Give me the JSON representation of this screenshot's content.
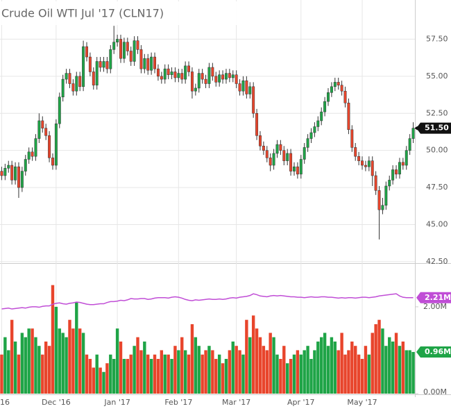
{
  "chart_data": {
    "type": "candlestick",
    "title": "Crude Oil WTI Jul '17 (CLN17)",
    "up_color": "#1fa447",
    "down_color": "#e8452c",
    "ma_color": "#c04dd6",
    "grid": true,
    "xlim": [
      -0.5,
      121.5
    ],
    "xticks": [
      {
        "value": 0,
        "label": "16"
      },
      {
        "value": 16,
        "label": "Dec '16"
      },
      {
        "value": 34,
        "label": "Jan '17"
      },
      {
        "value": 52,
        "label": "Feb '17"
      },
      {
        "value": 69,
        "label": "Mar '17"
      },
      {
        "value": 88,
        "label": "Apr '17"
      },
      {
        "value": 106,
        "label": "May '17"
      }
    ],
    "ylim": [
      42.45,
      60.0
    ],
    "yticks": [
      {
        "value": 42.5,
        "label": "42.50"
      },
      {
        "value": 45,
        "label": "45.00"
      },
      {
        "value": 47.5,
        "label": "47.50"
      },
      {
        "value": 50,
        "label": "50.00"
      },
      {
        "value": 52.5,
        "label": "52.50"
      },
      {
        "value": 55,
        "label": "55.00"
      },
      {
        "value": 57.5,
        "label": "57.50"
      }
    ],
    "volume_ylim": [
      0,
      2.99
    ],
    "volume_yticks": [
      {
        "value": 0,
        "label": "0.00M"
      },
      {
        "value": 2,
        "label": "2.00M"
      }
    ],
    "last_price": {
      "value": 51.5,
      "label": "51.50"
    },
    "last_volume": {
      "value": 0.96,
      "label": "0.96M"
    },
    "last_ma": {
      "value": 2.21,
      "label": "2.21M"
    },
    "open": [
      48.6,
      48.3,
      48.8,
      49.0,
      48.0,
      48.9,
      47.5,
      48.6,
      49.4,
      49.9,
      49.6,
      50.8,
      52.0,
      51.5,
      51.0,
      49.5,
      49.0,
      51.8,
      53.6,
      54.8,
      55.2,
      54.5,
      54.0,
      55.0,
      54.3,
      57.0,
      56.3,
      55.3,
      54.4,
      56.0,
      55.6,
      56.0,
      55.5,
      56.8,
      57.3,
      57.5,
      56.2,
      57.3,
      56.7,
      56.0,
      57.4,
      56.8,
      55.5,
      56.2,
      55.4,
      56.3,
      55.5,
      55.0,
      54.8,
      55.5,
      55.1,
      55.3,
      54.9,
      55.2,
      54.8,
      55.7,
      55.3,
      54.0,
      54.2,
      55.2,
      54.8,
      54.5,
      55.6,
      55.0,
      54.6,
      55.1,
      54.8,
      55.2,
      54.9,
      55.1,
      54.5,
      54.0,
      54.7,
      53.8,
      54.3,
      52.5,
      51.0,
      50.3,
      50.0,
      49.5,
      49.0,
      49.8,
      50.4,
      50.0,
      49.3,
      49.8,
      48.6,
      48.9,
      48.4,
      49.4,
      50.2,
      50.8,
      51.2,
      51.6,
      52.0,
      52.6,
      53.3,
      53.9,
      54.3,
      54.6,
      54.4,
      54.0,
      53.2,
      51.4,
      50.2,
      49.6,
      49.3,
      49.0,
      48.9,
      49.3,
      48.3,
      47.3,
      46.0,
      46.3,
      47.6,
      48.0,
      48.7,
      48.4,
      49.2,
      49.0,
      50.0,
      50.8
    ],
    "high": [
      48.9,
      49.1,
      49.3,
      49.3,
      49.2,
      49.2,
      48.9,
      49.7,
      50.2,
      50.2,
      51.1,
      52.5,
      52.3,
      51.8,
      51.3,
      49.8,
      52.1,
      53.9,
      55.1,
      55.5,
      55.5,
      54.8,
      55.3,
      55.3,
      57.4,
      57.3,
      56.6,
      55.6,
      56.3,
      56.3,
      56.3,
      56.3,
      57.1,
      58.4,
      57.8,
      57.8,
      57.6,
      57.6,
      57.0,
      57.7,
      57.7,
      57.1,
      56.5,
      56.5,
      56.6,
      56.6,
      55.8,
      55.3,
      55.8,
      55.8,
      55.6,
      55.6,
      55.5,
      55.5,
      56.0,
      56.0,
      55.6,
      54.5,
      55.5,
      55.5,
      55.1,
      55.9,
      55.9,
      55.3,
      55.4,
      55.4,
      55.5,
      55.5,
      55.4,
      55.4,
      54.8,
      55.0,
      55.0,
      54.6,
      54.6,
      52.8,
      51.3,
      50.6,
      50.3,
      49.8,
      50.1,
      50.7,
      50.7,
      50.3,
      50.1,
      50.1,
      49.2,
      49.2,
      49.7,
      50.5,
      51.1,
      51.5,
      51.9,
      52.3,
      52.9,
      53.6,
      54.2,
      54.6,
      54.9,
      54.9,
      54.7,
      54.3,
      53.5,
      51.7,
      50.5,
      49.9,
      49.6,
      49.3,
      49.6,
      49.6,
      48.6,
      47.6,
      46.8,
      47.9,
      48.3,
      49.0,
      49.0,
      49.5,
      49.5,
      50.3,
      51.1,
      51.9
    ],
    "low": [
      48.0,
      48.0,
      48.5,
      47.7,
      47.7,
      46.8,
      47.2,
      48.3,
      49.1,
      49.3,
      49.3,
      50.5,
      51.2,
      50.7,
      49.2,
      48.7,
      48.7,
      51.5,
      53.3,
      54.5,
      54.2,
      53.7,
      53.7,
      54.0,
      54.0,
      56.0,
      55.0,
      54.1,
      54.1,
      55.3,
      55.3,
      55.2,
      55.2,
      56.5,
      57.0,
      55.9,
      55.9,
      56.4,
      55.7,
      55.7,
      56.5,
      55.2,
      55.2,
      55.1,
      55.1,
      55.2,
      54.7,
      54.5,
      54.5,
      54.8,
      54.8,
      54.6,
      54.6,
      54.5,
      54.5,
      55.0,
      53.5,
      53.7,
      53.9,
      54.5,
      54.2,
      54.2,
      54.7,
      54.3,
      54.3,
      54.5,
      54.5,
      54.6,
      54.6,
      54.2,
      53.7,
      53.7,
      53.5,
      53.5,
      52.2,
      50.7,
      50.0,
      49.7,
      49.2,
      48.6,
      48.7,
      49.5,
      49.7,
      49.0,
      49.0,
      48.3,
      48.3,
      48.1,
      48.1,
      49.1,
      49.9,
      50.5,
      50.9,
      51.3,
      51.7,
      52.3,
      53.0,
      53.6,
      54.0,
      54.1,
      53.7,
      52.9,
      51.1,
      49.9,
      49.3,
      49.0,
      48.7,
      48.6,
      48.6,
      47.6,
      47.0,
      44.0,
      45.7,
      46.0,
      47.3,
      47.7,
      48.1,
      48.1,
      48.7,
      48.7,
      49.7,
      50.5
    ],
    "close": [
      48.3,
      48.8,
      49.0,
      48.0,
      48.9,
      47.5,
      48.6,
      49.4,
      49.9,
      49.6,
      50.8,
      52.0,
      51.5,
      51.0,
      49.5,
      49.0,
      51.8,
      53.6,
      54.8,
      55.2,
      54.5,
      54.0,
      55.0,
      54.3,
      57.0,
      56.3,
      55.3,
      54.4,
      56.0,
      55.6,
      56.0,
      55.5,
      56.8,
      57.3,
      57.5,
      56.2,
      57.3,
      56.7,
      56.0,
      57.4,
      56.8,
      55.5,
      56.2,
      55.4,
      56.3,
      55.5,
      55.0,
      54.8,
      55.5,
      55.1,
      55.3,
      54.9,
      55.2,
      54.8,
      55.7,
      55.3,
      54.0,
      54.2,
      55.2,
      54.8,
      54.5,
      55.6,
      55.0,
      54.6,
      55.1,
      54.8,
      55.2,
      54.9,
      55.1,
      54.5,
      54.0,
      54.7,
      53.8,
      54.3,
      52.5,
      51.0,
      50.3,
      50.0,
      49.5,
      49.0,
      49.8,
      50.4,
      50.0,
      49.3,
      49.8,
      48.6,
      48.9,
      48.4,
      49.4,
      50.2,
      50.8,
      51.2,
      51.6,
      52.0,
      52.6,
      53.3,
      53.9,
      54.3,
      54.6,
      54.4,
      54.0,
      53.2,
      51.4,
      50.2,
      49.6,
      49.3,
      49.0,
      48.9,
      49.3,
      48.3,
      47.3,
      46.0,
      46.3,
      47.6,
      48.0,
      48.7,
      48.4,
      49.2,
      49.0,
      50.0,
      50.8,
      51.5
    ],
    "volume": [
      0.9,
      1.3,
      1.0,
      1.7,
      1.2,
      0.9,
      1.4,
      1.3,
      1.5,
      1.5,
      1.3,
      1.1,
      0.9,
      1.2,
      1.1,
      2.5,
      2.0,
      1.5,
      1.4,
      1.3,
      1.7,
      1.5,
      2.1,
      1.5,
      1.4,
      0.9,
      0.8,
      0.6,
      0.9,
      0.6,
      0.5,
      0.7,
      0.9,
      0.8,
      1.5,
      1.2,
      0.8,
      0.8,
      0.9,
      1.1,
      1.3,
      1.0,
      1.2,
      0.9,
      0.8,
      0.9,
      0.8,
      1.0,
      0.9,
      0.9,
      0.8,
      1.1,
      1.0,
      1.3,
      1.0,
      0.9,
      1.6,
      1.3,
      1.1,
      0.9,
      1.0,
      1.1,
      1.0,
      0.8,
      0.9,
      0.7,
      0.8,
      1.0,
      1.2,
      1.1,
      1.0,
      0.9,
      1.7,
      1.3,
      1.8,
      1.5,
      1.3,
      1.1,
      1.0,
      1.4,
      1.3,
      0.9,
      0.8,
      1.1,
      0.7,
      0.8,
      0.9,
      1.0,
      0.9,
      1.0,
      1.1,
      0.8,
      1.0,
      1.2,
      1.3,
      1.4,
      1.1,
      1.3,
      1.2,
      1.0,
      1.4,
      0.9,
      1.0,
      1.2,
      1.1,
      0.9,
      0.8,
      1.1,
      0.9,
      1.4,
      1.6,
      1.7,
      1.5,
      1.1,
      1.3,
      1.2,
      1.4,
      1.1,
      1.2,
      1.0,
      1.0,
      0.96
    ],
    "volume_ma": [
      1.95,
      1.96,
      1.97,
      1.95,
      1.96,
      1.97,
      1.98,
      1.97,
      1.99,
      2.0,
      2.0,
      1.99,
      2.01,
      2.02,
      2.02,
      2.06,
      2.08,
      2.09,
      2.07,
      2.06,
      2.08,
      2.09,
      2.11,
      2.1,
      2.08,
      2.06,
      2.05,
      2.05,
      2.06,
      2.07,
      2.07,
      2.1,
      2.12,
      2.12,
      2.13,
      2.15,
      2.14,
      2.16,
      2.19,
      2.18,
      2.18,
      2.19,
      2.19,
      2.17,
      2.18,
      2.2,
      2.21,
      2.21,
      2.21,
      2.2,
      2.22,
      2.23,
      2.22,
      2.2,
      2.17,
      2.15,
      2.14,
      2.16,
      2.15,
      2.16,
      2.17,
      2.18,
      2.17,
      2.17,
      2.18,
      2.17,
      2.18,
      2.2,
      2.21,
      2.2,
      2.22,
      2.23,
      2.24,
      2.26,
      2.3,
      2.28,
      2.25,
      2.24,
      2.23,
      2.25,
      2.26,
      2.25,
      2.26,
      2.25,
      2.24,
      2.23,
      2.23,
      2.22,
      2.22,
      2.21,
      2.22,
      2.23,
      2.22,
      2.22,
      2.23,
      2.23,
      2.22,
      2.22,
      2.21,
      2.2,
      2.21,
      2.2,
      2.21,
      2.21,
      2.2,
      2.21,
      2.22,
      2.22,
      2.21,
      2.22,
      2.23,
      2.25,
      2.26,
      2.27,
      2.28,
      2.29,
      2.3,
      2.25,
      2.22,
      2.21,
      2.21,
      2.21
    ]
  }
}
